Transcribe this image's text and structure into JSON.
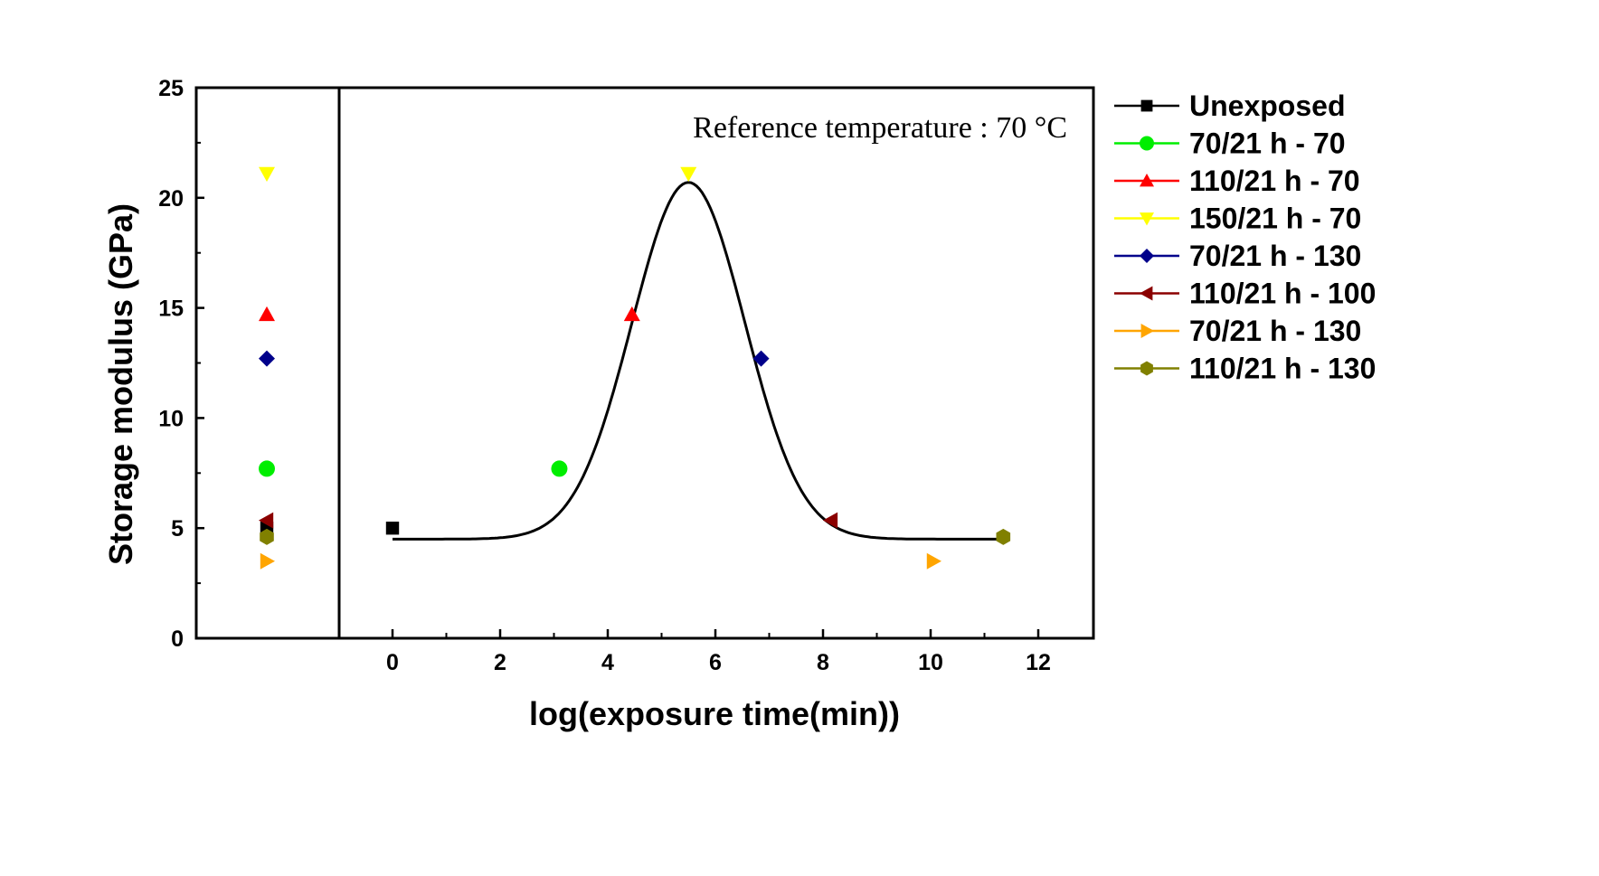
{
  "chart_data": {
    "type": "scatter",
    "ylabel": "Storage modulus (GPa)",
    "xlabel": "log(exposure time(min))",
    "annotation": "Reference temperature : 70 °C",
    "ylim": [
      0,
      25
    ],
    "yticks": [
      "0",
      "5",
      "10",
      "15",
      "20",
      "25"
    ],
    "xlim": [
      -1,
      13
    ],
    "xticks": [
      "0",
      "2",
      "4",
      "6",
      "8",
      "10",
      "12"
    ],
    "left_panel": {
      "description": "unshifted moduli"
    },
    "series": [
      {
        "name": "Unexposed",
        "color": "#000000",
        "marker": "square",
        "modulus": 5.0,
        "log_time": 0.0
      },
      {
        "name": "70/21 h - 70",
        "color": "#00ee00",
        "marker": "circle",
        "modulus": 7.7,
        "log_time": 3.1
      },
      {
        "name": "110/21 h - 70",
        "color": "#ff0000",
        "marker": "triangle-up",
        "modulus": 14.7,
        "log_time": 4.45
      },
      {
        "name": "150/21 h - 70",
        "color": "#ffff00",
        "marker": "triangle-down",
        "modulus": 21.1,
        "log_time": 5.5
      },
      {
        "name": "70/21 h - 130",
        "color": "#00008b",
        "marker": "diamond",
        "modulus": 12.7,
        "log_time": 6.85
      },
      {
        "name": "110/21 h - 100",
        "color": "#8b0000",
        "marker": "triangle-left",
        "modulus": 5.35,
        "log_time": 8.15
      },
      {
        "name": "70/21 h - 130",
        "color": "#ffa500",
        "marker": "triangle-right",
        "modulus": 3.5,
        "log_time": 10.05
      },
      {
        "name": "110/21 h - 130",
        "color": "#808000",
        "marker": "hexagon",
        "modulus": 4.6,
        "log_time": 11.35
      }
    ],
    "fit_curve": {
      "type": "gaussian",
      "baseline": 4.5,
      "peak": 20.7,
      "center": 5.5,
      "sigma": 1.05,
      "x_range": [
        0,
        11.3
      ],
      "color": "#000000"
    },
    "legend_position": "right"
  }
}
